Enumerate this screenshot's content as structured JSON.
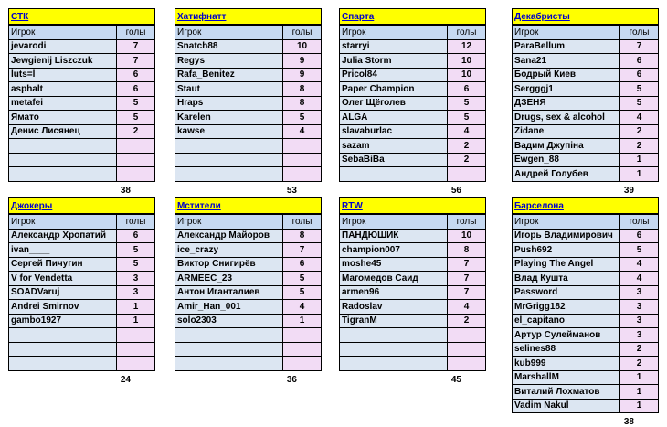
{
  "teams": [
    {
      "name": "СТК",
      "header": {
        "player": "Игрок",
        "goals": "голы"
      },
      "total": "38",
      "rows": [
        [
          "jevarodi",
          "7"
        ],
        [
          "Jewgienij Liszczuk",
          "7"
        ],
        [
          "luts=l",
          "6"
        ],
        [
          "asphalt",
          "6"
        ],
        [
          "metafei",
          "5"
        ],
        [
          "Ямато",
          "5"
        ],
        [
          "Денис Лисянец",
          "2"
        ],
        [
          "",
          ""
        ],
        [
          "",
          ""
        ],
        [
          "",
          ""
        ]
      ]
    },
    {
      "name": "Хатифнатт",
      "header": {
        "player": "Игрок",
        "goals": "голы"
      },
      "total": "53",
      "rows": [
        [
          "Snatch88",
          "10"
        ],
        [
          "Regys",
          "9"
        ],
        [
          "Rafa_Benitez",
          "9"
        ],
        [
          "Staut",
          "8"
        ],
        [
          "Hraps",
          "8"
        ],
        [
          "Karelen",
          "5"
        ],
        [
          "kawse",
          "4"
        ],
        [
          "",
          ""
        ],
        [
          "",
          ""
        ],
        [
          "",
          ""
        ]
      ]
    },
    {
      "name": "Спарта",
      "header": {
        "player": "Игрок",
        "goals": "голы"
      },
      "total": "56",
      "rows": [
        [
          "starryi",
          "12"
        ],
        [
          "Julia Storm",
          "10"
        ],
        [
          "Pricol84",
          "10"
        ],
        [
          "Paper Champion",
          "6"
        ],
        [
          "Олег Щёголев",
          "5"
        ],
        [
          "ALGA",
          "5"
        ],
        [
          "slavaburlac",
          "4"
        ],
        [
          "sazam",
          "2"
        ],
        [
          "SebaBiBa",
          "2"
        ],
        [
          "",
          ""
        ]
      ]
    },
    {
      "name": "Декабристы",
      "header": {
        "player": "Игрок",
        "goals": "голы"
      },
      "total": "39",
      "rows": [
        [
          "ParaBellum",
          "7"
        ],
        [
          "Sana21",
          "6"
        ],
        [
          "Бодрый Киев",
          "6"
        ],
        [
          "Sergggj1",
          "5"
        ],
        [
          "ДЗЕНЯ",
          "5"
        ],
        [
          "Drugs, sex & alcohol",
          "4"
        ],
        [
          "Zidane",
          "2"
        ],
        [
          "Вадим Джупіна",
          "2"
        ],
        [
          "Ewgen_88",
          "1"
        ],
        [
          "Андрей Голубев",
          "1"
        ]
      ]
    },
    {
      "name": "Джокеры",
      "header": {
        "player": "Игрок",
        "goals": "голы"
      },
      "total": "24",
      "rows": [
        [
          "Александр Хропатий",
          "6"
        ],
        [
          "ivan____",
          "5"
        ],
        [
          "Сергей Пичугин",
          "5"
        ],
        [
          "V for Vendetta",
          "3"
        ],
        [
          "SOADVaruj",
          "3"
        ],
        [
          "Andrei Smirnov",
          "1"
        ],
        [
          "gambo1927",
          "1"
        ],
        [
          "",
          ""
        ],
        [
          "",
          ""
        ],
        [
          "",
          ""
        ]
      ]
    },
    {
      "name": "Мстители",
      "header": {
        "player": "Игрок",
        "goals": "голы"
      },
      "total": "36",
      "rows": [
        [
          "Александр Майоров",
          "8"
        ],
        [
          "ice_crazy",
          "7"
        ],
        [
          "Виктор Снигирёв",
          "6"
        ],
        [
          "ARMEEC_23",
          "5"
        ],
        [
          "Антон Иганталиев",
          "5"
        ],
        [
          "Amir_Han_001",
          "4"
        ],
        [
          "solo2303",
          "1"
        ],
        [
          "",
          ""
        ],
        [
          "",
          ""
        ],
        [
          "",
          ""
        ]
      ]
    },
    {
      "name": "RTW",
      "header": {
        "player": "Игрок",
        "goals": "голы"
      },
      "total": "45",
      "rows": [
        [
          "ПАНДЮШИК",
          "10"
        ],
        [
          "champion007",
          "8"
        ],
        [
          "moshe45",
          "7"
        ],
        [
          "Магомедов Саид",
          "7"
        ],
        [
          "armen96",
          "7"
        ],
        [
          "Radoslav",
          "4"
        ],
        [
          "TigranM",
          "2"
        ],
        [
          "",
          ""
        ],
        [
          "",
          ""
        ],
        [
          "",
          ""
        ]
      ]
    },
    {
      "name": "Барселона",
      "header": {
        "player": "Игрок",
        "goals": "голы"
      },
      "total": "38",
      "rows": [
        [
          "Игорь Владимирович",
          "6"
        ],
        [
          "Push692",
          "5"
        ],
        [
          "Playing The Angel",
          "4"
        ],
        [
          "Влад Кушта",
          "4"
        ],
        [
          "Password",
          "3"
        ],
        [
          "MrGrigg182",
          "3"
        ],
        [
          "el_capitano",
          "3"
        ],
        [
          "Артур Сулейманов",
          "3"
        ],
        [
          "selines88",
          "2"
        ],
        [
          "kub999",
          "2"
        ],
        [
          "MarshallM",
          "1"
        ],
        [
          "Виталий Лохматов",
          "1"
        ],
        [
          "Vadim Nakul",
          "1"
        ]
      ]
    }
  ]
}
